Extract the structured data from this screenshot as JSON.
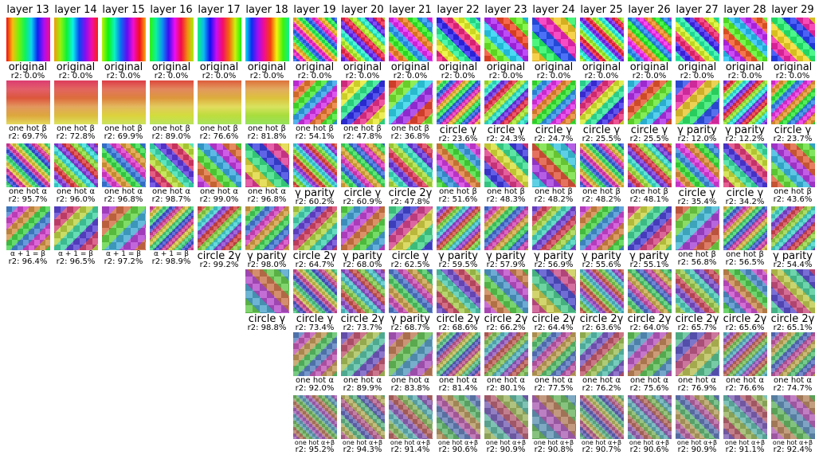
{
  "columns": [
    {
      "title": "layer 13",
      "cells": [
        {
          "label": "original",
          "r2": "r2: 0.0%"
        },
        {
          "label": "one hot β",
          "r2": "r2: 69.7%"
        },
        {
          "label": "one hot α",
          "r2": "r2: 95.7%"
        },
        {
          "label": "α + 1 = β",
          "r2": "r2: 96.4%"
        }
      ]
    },
    {
      "title": "layer 14",
      "cells": [
        {
          "label": "original",
          "r2": "r2: 0.0%"
        },
        {
          "label": "one hot β",
          "r2": "r2: 72.8%"
        },
        {
          "label": "one hot α",
          "r2": "r2: 96.0%"
        },
        {
          "label": "α + 1 = β",
          "r2": "r2: 96.5%"
        }
      ]
    },
    {
      "title": "layer 15",
      "cells": [
        {
          "label": "original",
          "r2": "r2: 0.0%"
        },
        {
          "label": "one hot β",
          "r2": "r2: 69.9%"
        },
        {
          "label": "one hot α",
          "r2": "r2: 96.8%"
        },
        {
          "label": "α + 1 = β",
          "r2": "r2: 97.2%"
        }
      ]
    },
    {
      "title": "layer 16",
      "cells": [
        {
          "label": "original",
          "r2": "r2: 0.0%"
        },
        {
          "label": "one hot β",
          "r2": "r2: 89.0%"
        },
        {
          "label": "one hot α",
          "r2": "r2: 98.7%"
        },
        {
          "label": "α + 1 = β",
          "r2": "r2: 98.9%"
        }
      ]
    },
    {
      "title": "layer 17",
      "cells": [
        {
          "label": "original",
          "r2": "r2: 0.0%"
        },
        {
          "label": "one hot β",
          "r2": "r2: 76.6%"
        },
        {
          "label": "one hot α",
          "r2": "r2: 99.0%"
        },
        {
          "label": "circle 2γ",
          "r2": "r2: 99.2%"
        }
      ]
    },
    {
      "title": "layer 18",
      "cells": [
        {
          "label": "original",
          "r2": "r2: 0.0%"
        },
        {
          "label": "one hot β",
          "r2": "r2: 81.8%"
        },
        {
          "label": "one hot α",
          "r2": "r2: 96.8%"
        },
        {
          "label": "γ parity",
          "r2": "r2: 98.0%"
        },
        {
          "label": "circle γ",
          "r2": "r2: 98.8%"
        }
      ]
    },
    {
      "title": "layer 19",
      "cells": [
        {
          "label": "original",
          "r2": "r2: 0.0%"
        },
        {
          "label": "one hot β",
          "r2": "r2: 54.1%"
        },
        {
          "label": "γ parity",
          "r2": "r2: 60.2%"
        },
        {
          "label": "circle 2γ",
          "r2": "r2: 64.7%"
        },
        {
          "label": "circle γ",
          "r2": "r2: 73.4%"
        },
        {
          "label": "one hot α",
          "r2": "r2: 92.0%"
        },
        {
          "label": "one hot α+β",
          "r2": "r2: 95.2%"
        }
      ]
    },
    {
      "title": "layer 20",
      "cells": [
        {
          "label": "original",
          "r2": "r2: 0.0%"
        },
        {
          "label": "one hot β",
          "r2": "r2: 47.8%"
        },
        {
          "label": "circle γ",
          "r2": "r2: 60.9%"
        },
        {
          "label": "γ parity",
          "r2": "r2: 68.0%"
        },
        {
          "label": "circle 2γ",
          "r2": "r2: 73.7%"
        },
        {
          "label": "one hot α",
          "r2": "r2: 89.9%"
        },
        {
          "label": "one hot α+β",
          "r2": "r2: 94.3%"
        }
      ]
    },
    {
      "title": "layer 21",
      "cells": [
        {
          "label": "original",
          "r2": "r2: 0.0%"
        },
        {
          "label": "one hot β",
          "r2": "r2: 36.8%"
        },
        {
          "label": "circle 2γ",
          "r2": "r2: 47.8%"
        },
        {
          "label": "circle γ",
          "r2": "r2: 62.5%"
        },
        {
          "label": "γ parity",
          "r2": "r2: 68.7%"
        },
        {
          "label": "one hot α",
          "r2": "r2: 83.8%"
        },
        {
          "label": "one hot α+β",
          "r2": "r2: 91.4%"
        }
      ]
    },
    {
      "title": "layer 22",
      "cells": [
        {
          "label": "original",
          "r2": "r2: 0.0%"
        },
        {
          "label": "circle γ",
          "r2": "r2: 23.6%"
        },
        {
          "label": "one hot β",
          "r2": "r2: 51.6%"
        },
        {
          "label": "γ parity",
          "r2": "r2: 59.5%"
        },
        {
          "label": "circle 2γ",
          "r2": "r2: 68.6%"
        },
        {
          "label": "one hot α",
          "r2": "r2: 81.4%"
        },
        {
          "label": "one hot α+β",
          "r2": "r2: 90.6%"
        }
      ]
    },
    {
      "title": "layer 23",
      "cells": [
        {
          "label": "original",
          "r2": "r2: 0.0%"
        },
        {
          "label": "circle γ",
          "r2": "r2: 24.3%"
        },
        {
          "label": "one hot β",
          "r2": "r2: 48.3%"
        },
        {
          "label": "γ parity",
          "r2": "r2: 57.9%"
        },
        {
          "label": "circle 2γ",
          "r2": "r2: 66.2%"
        },
        {
          "label": "one hot α",
          "r2": "r2: 80.1%"
        },
        {
          "label": "one hot α+β",
          "r2": "r2: 90.9%"
        }
      ]
    },
    {
      "title": "layer 24",
      "cells": [
        {
          "label": "original",
          "r2": "r2: 0.0%"
        },
        {
          "label": "circle γ",
          "r2": "r2: 24.7%"
        },
        {
          "label": "one hot β",
          "r2": "r2: 48.2%"
        },
        {
          "label": "γ parity",
          "r2": "r2: 56.9%"
        },
        {
          "label": "circle 2γ",
          "r2": "r2: 64.4%"
        },
        {
          "label": "one hot α",
          "r2": "r2: 77.5%"
        },
        {
          "label": "one hot α+β",
          "r2": "r2: 90.8%"
        }
      ]
    },
    {
      "title": "layer 25",
      "cells": [
        {
          "label": "original",
          "r2": "r2: 0.0%"
        },
        {
          "label": "circle γ",
          "r2": "r2: 25.5%"
        },
        {
          "label": "one hot β",
          "r2": "r2: 48.2%"
        },
        {
          "label": "γ parity",
          "r2": "r2: 55.6%"
        },
        {
          "label": "circle 2γ",
          "r2": "r2: 63.6%"
        },
        {
          "label": "one hot α",
          "r2": "r2: 76.2%"
        },
        {
          "label": "one hot α+β",
          "r2": "r2: 90.7%"
        }
      ]
    },
    {
      "title": "layer 26",
      "cells": [
        {
          "label": "original",
          "r2": "r2: 0.0%"
        },
        {
          "label": "circle γ",
          "r2": "r2: 25.5%"
        },
        {
          "label": "one hot β",
          "r2": "r2: 48.1%"
        },
        {
          "label": "γ parity",
          "r2": "r2: 55.1%"
        },
        {
          "label": "circle 2γ",
          "r2": "r2: 64.0%"
        },
        {
          "label": "one hot α",
          "r2": "r2: 75.6%"
        },
        {
          "label": "one hot α+β",
          "r2": "r2: 90.6%"
        }
      ]
    },
    {
      "title": "layer 27",
      "cells": [
        {
          "label": "original",
          "r2": "r2: 0.0%"
        },
        {
          "label": "γ parity",
          "r2": "r2: 12.0%"
        },
        {
          "label": "circle γ",
          "r2": "r2: 35.4%"
        },
        {
          "label": "one hot β",
          "r2": "r2: 56.8%"
        },
        {
          "label": "circle 2γ",
          "r2": "r2: 65.7%"
        },
        {
          "label": "one hot α",
          "r2": "r2: 76.9%"
        },
        {
          "label": "one hot α+β",
          "r2": "r2: 90.9%"
        }
      ]
    },
    {
      "title": "layer 28",
      "cells": [
        {
          "label": "original",
          "r2": "r2: 0.0%"
        },
        {
          "label": "γ parity",
          "r2": "r2: 12.2%"
        },
        {
          "label": "circle γ",
          "r2": "r2: 34.2%"
        },
        {
          "label": "one hot β",
          "r2": "r2: 56.5%"
        },
        {
          "label": "circle 2γ",
          "r2": "r2: 65.6%"
        },
        {
          "label": "one hot α",
          "r2": "r2: 76.6%"
        },
        {
          "label": "one hot α+β",
          "r2": "r2: 91.1%"
        }
      ]
    },
    {
      "title": "layer 29",
      "cells": [
        {
          "label": "original",
          "r2": "r2: 0.0%"
        },
        {
          "label": "circle γ",
          "r2": "r2: 23.7%"
        },
        {
          "label": "one hot β",
          "r2": "r2: 43.6%"
        },
        {
          "label": "γ parity",
          "r2": "r2: 54.4%"
        },
        {
          "label": "circle 2γ",
          "r2": "r2: 65.1%"
        },
        {
          "label": "one hot α",
          "r2": "r2: 74.7%"
        },
        {
          "label": "one hot α+β",
          "r2": "r2: 92.4%"
        }
      ]
    }
  ]
}
